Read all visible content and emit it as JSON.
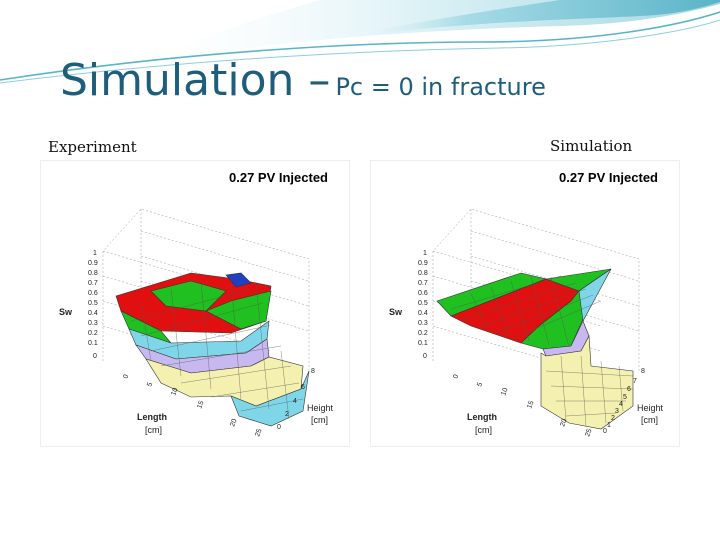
{
  "slide": {
    "title_main": "Simulation –",
    "title_sub": "Pc = 0 in fracture",
    "left_label": "Experiment",
    "right_label": "Simulation",
    "accent_color": "#1e5e7c",
    "wave_color": "#5ab4c8"
  },
  "plots": [
    {
      "title": "0.27 PV Injected",
      "z_label": "Sw",
      "z_ticks": [
        "1",
        "0.9",
        "0.8",
        "0.7",
        "0.6",
        "0.5",
        "0.4",
        "0.3",
        "0.2",
        "0.1",
        "0"
      ],
      "length_label": "Length",
      "length_unit": "[cm]",
      "height_label": "Height",
      "height_unit": "[cm]",
      "length_ticks": [
        "0",
        "5",
        "10",
        "15",
        "20",
        "25"
      ],
      "height_ticks": [
        "0",
        "2",
        "4",
        "6",
        "8"
      ],
      "surface_colors": [
        "#2040c0",
        "#e01010",
        "#20c020",
        "#7fd6e8",
        "#c8b8f0",
        "#f4f0b0"
      ]
    },
    {
      "title": "0.27 PV Injected",
      "z_label": "Sw",
      "z_ticks": [
        "1",
        "0.9",
        "0.8",
        "0.7",
        "0.6",
        "0.5",
        "0.4",
        "0.3",
        "0.2",
        "0.1",
        "0"
      ],
      "length_label": "Length",
      "length_unit": "[cm]",
      "height_label": "Height",
      "height_unit": "[cm]",
      "length_ticks": [
        "0",
        "5",
        "10",
        "15",
        "20",
        "25"
      ],
      "height_ticks": [
        "0",
        "1",
        "2",
        "3",
        "4",
        "5",
        "6",
        "7",
        "8"
      ],
      "surface_colors": [
        "#e01010",
        "#20c020",
        "#7fd6e8",
        "#c8b8f0",
        "#f4f0b0"
      ]
    }
  ]
}
